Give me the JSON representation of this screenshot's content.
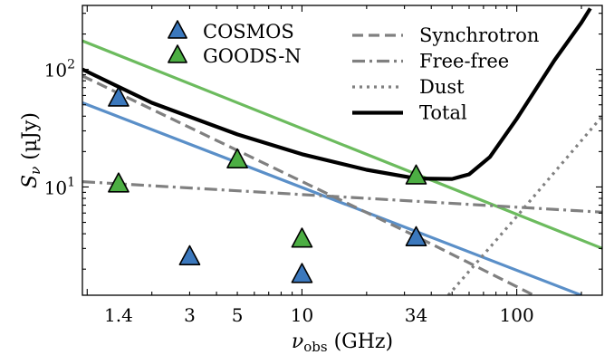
{
  "chart_data": {
    "type": "scatter",
    "x_scale": "log",
    "y_scale": "log",
    "xlim": [
      0.95,
      250
    ],
    "ylim": [
      1.2,
      350
    ],
    "xlabel_main": "ν",
    "xlabel_sub": "obs",
    "xlabel_unit": " (GHz)",
    "ylabel_main": "S",
    "ylabel_sub": "ν",
    "ylabel_unit": " (μJy)",
    "x_ticks": [
      {
        "value": 1.4,
        "label": "1.4"
      },
      {
        "value": 3,
        "label": "3"
      },
      {
        "value": 5,
        "label": "5"
      },
      {
        "value": 10,
        "label": "10"
      },
      {
        "value": 34,
        "label": "34"
      },
      {
        "value": 100,
        "label": "100"
      }
    ],
    "y_ticks": [
      {
        "value": 10,
        "base": "10",
        "exp": "1"
      },
      {
        "value": 100,
        "base": "10",
        "exp": "2"
      }
    ],
    "points": [
      {
        "series": "COSMOS",
        "x": 1.4,
        "y": 57
      },
      {
        "series": "COSMOS",
        "x": 3,
        "y": 2.55
      },
      {
        "series": "COSMOS",
        "x": 10,
        "y": 1.8
      },
      {
        "series": "COSMOS",
        "x": 34,
        "y": 3.7
      },
      {
        "series": "GOODS-N",
        "x": 1.4,
        "y": 10.6
      },
      {
        "series": "GOODS-N",
        "x": 5,
        "y": 17
      },
      {
        "series": "GOODS-N",
        "x": 10,
        "y": 3.6
      },
      {
        "series": "GOODS-N",
        "x": 34,
        "y": 12.4
      }
    ],
    "fit_lines": [
      {
        "series": "COSMOS",
        "color": "#5a8fc8",
        "points": [
          [
            0.95,
            52
          ],
          [
            200,
            1.2
          ]
        ]
      },
      {
        "series": "GOODS-N",
        "color": "#6cbb5e",
        "points": [
          [
            0.95,
            175
          ],
          [
            250,
            3.0
          ]
        ]
      }
    ],
    "model_curves": [
      {
        "name": "Synchrotron",
        "style": "dashed",
        "points": [
          [
            0.95,
            88
          ],
          [
            34,
            3.8
          ],
          [
            120,
            1.2
          ]
        ]
      },
      {
        "name": "Free-free",
        "style": "dashdot",
        "points": [
          [
            0.95,
            11.1
          ],
          [
            250,
            6.1
          ]
        ]
      },
      {
        "name": "Dust",
        "style": "dotted",
        "points": [
          [
            48,
            1.2
          ],
          [
            100,
            5.6
          ],
          [
            250,
            40
          ]
        ]
      },
      {
        "name": "Total",
        "style": "solid",
        "points": [
          [
            0.95,
            100
          ],
          [
            2,
            52
          ],
          [
            5,
            28
          ],
          [
            10,
            19
          ],
          [
            20,
            14
          ],
          [
            34,
            11.8
          ],
          [
            50,
            11.7
          ],
          [
            60,
            12.8
          ],
          [
            75,
            18
          ],
          [
            100,
            38
          ],
          [
            150,
            120
          ],
          [
            200,
            250
          ],
          [
            220,
            330
          ]
        ]
      }
    ],
    "legend": {
      "markers": [
        {
          "name": "COSMOS",
          "color": "#3b78bd"
        },
        {
          "name": "GOODS-N",
          "color": "#4cae43"
        }
      ],
      "lines": [
        {
          "name": "Synchrotron",
          "style": "dashed"
        },
        {
          "name": "Free-free",
          "style": "dashdot"
        },
        {
          "name": "Dust",
          "style": "dotted"
        },
        {
          "name": "Total",
          "style": "solid"
        }
      ]
    },
    "colors": {
      "cosmos_marker": "#3b78bd",
      "goodsn_marker": "#4cae43",
      "cosmos_line": "#5a8fc8",
      "goodsn_line": "#6cbb5e",
      "model_gray": "#808080",
      "total": "#000000"
    }
  }
}
